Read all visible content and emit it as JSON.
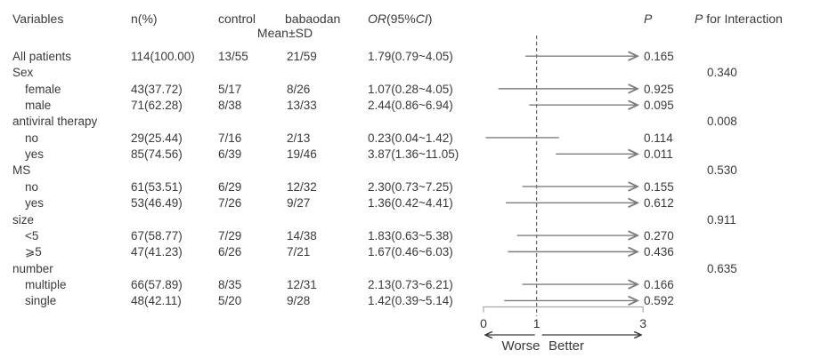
{
  "header": {
    "variables": "Variables",
    "n_pct": "n(%)",
    "control": "control",
    "babaodan": "babaodan",
    "mean_sd": "Mean±SD",
    "or_label": "OR",
    "or_open": "(95%",
    "or_ci": "CI",
    "or_close": ")",
    "p": "P",
    "p_interaction_p": "P",
    "p_interaction_rest": " for Interaction"
  },
  "colors": {
    "text": "#3a3a3a",
    "ci_line": "#7d7d7d",
    "reference_line": "#4a4a4a",
    "axis_bracket": "#a9a9a9",
    "direction_arrows": "#3a3a3a"
  },
  "chart_data": {
    "type": "scatter",
    "variant": "forest-plot",
    "x_axis": {
      "min": 0,
      "max": 3,
      "ticks": [
        "0",
        "1",
        "3"
      ],
      "tick_values": [
        0,
        1,
        3
      ],
      "reference_line": 1,
      "worse_label": "Worse",
      "better_label": "Better"
    },
    "rows": [
      {
        "label": "All patients",
        "indent": 0,
        "n_pct": "114(100.00)",
        "control": "13/55",
        "babaodan": "21/59",
        "or_text": "1.79(0.79~4.05)",
        "or": 1.79,
        "ci_low": 0.79,
        "ci_high": 4.05,
        "p": "0.165",
        "p_interaction": ""
      },
      {
        "label": "Sex",
        "indent": 0,
        "group": true,
        "p_interaction": "0.340"
      },
      {
        "label": "female",
        "indent": 1,
        "n_pct": "43(37.72)",
        "control": "5/17",
        "babaodan": "8/26",
        "or_text": "1.07(0.28~4.05)",
        "or": 1.07,
        "ci_low": 0.28,
        "ci_high": 4.05,
        "p": "0.925",
        "p_interaction": ""
      },
      {
        "label": "male",
        "indent": 1,
        "n_pct": "71(62.28)",
        "control": "8/38",
        "babaodan": "13/33",
        "or_text": "2.44(0.86~6.94)",
        "or": 2.44,
        "ci_low": 0.86,
        "ci_high": 6.94,
        "p": "0.095",
        "p_interaction": ""
      },
      {
        "label": "antiviral therapy",
        "indent": 0,
        "group": true,
        "p_interaction": "0.008"
      },
      {
        "label": "no",
        "indent": 1,
        "n_pct": "29(25.44)",
        "control": "7/16",
        "babaodan": "2/13",
        "or_text": "0.23(0.04~1.42)",
        "or": 0.23,
        "ci_low": 0.04,
        "ci_high": 1.42,
        "p": "0.114",
        "p_interaction": ""
      },
      {
        "label": "yes",
        "indent": 1,
        "n_pct": "85(74.56)",
        "control": "6/39",
        "babaodan": "19/46",
        "or_text": "3.87(1.36~11.05)",
        "or": 3.87,
        "ci_low": 1.36,
        "ci_high": 11.05,
        "p": "0.011",
        "p_interaction": ""
      },
      {
        "label": "MS",
        "indent": 0,
        "group": true,
        "p_interaction": "0.530"
      },
      {
        "label": "no",
        "indent": 1,
        "n_pct": "61(53.51)",
        "control": "6/29",
        "babaodan": "12/32",
        "or_text": "2.30(0.73~7.25)",
        "or": 2.3,
        "ci_low": 0.73,
        "ci_high": 7.25,
        "p": "0.155",
        "p_interaction": ""
      },
      {
        "label": "yes",
        "indent": 1,
        "n_pct": "53(46.49)",
        "control": "7/26",
        "babaodan": "9/27",
        "or_text": "1.36(0.42~4.41)",
        "or": 1.36,
        "ci_low": 0.42,
        "ci_high": 4.41,
        "p": "0.612",
        "p_interaction": ""
      },
      {
        "label": "size",
        "indent": 0,
        "group": true,
        "p_interaction": "0.911"
      },
      {
        "label": "<5",
        "indent": 1,
        "n_pct": "67(58.77)",
        "control": "7/29",
        "babaodan": "14/38",
        "or_text": "1.83(0.63~5.38)",
        "or": 1.83,
        "ci_low": 0.63,
        "ci_high": 5.38,
        "p": "0.270",
        "p_interaction": ""
      },
      {
        "label": "⩾5",
        "indent": 1,
        "n_pct": "47(41.23)",
        "control": "6/26",
        "babaodan": "7/21",
        "or_text": "1.67(0.46~6.03)",
        "or": 1.67,
        "ci_low": 0.46,
        "ci_high": 6.03,
        "p": "0.436",
        "p_interaction": ""
      },
      {
        "label": "number",
        "indent": 0,
        "group": true,
        "p_interaction": "0.635"
      },
      {
        "label": "multiple",
        "indent": 1,
        "n_pct": "66(57.89)",
        "control": "8/35",
        "babaodan": "12/31",
        "or_text": "2.13(0.73~6.21)",
        "or": 2.13,
        "ci_low": 0.73,
        "ci_high": 6.21,
        "p": "0.166",
        "p_interaction": ""
      },
      {
        "label": "single",
        "indent": 1,
        "n_pct": "48(42.11)",
        "control": "5/20",
        "babaodan": "9/28",
        "or_text": "1.42(0.39~5.14)",
        "or": 1.42,
        "ci_low": 0.39,
        "ci_high": 5.14,
        "p": "0.592",
        "p_interaction": ""
      }
    ]
  }
}
